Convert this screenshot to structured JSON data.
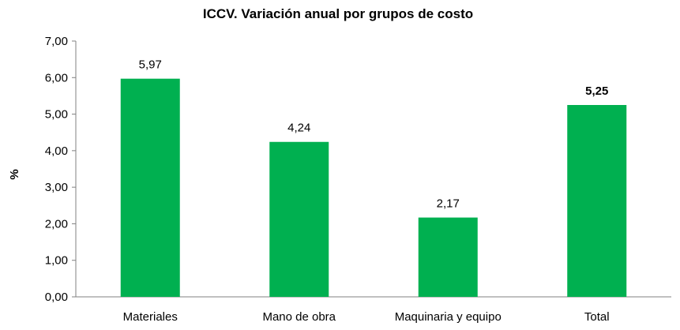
{
  "chart_data": {
    "type": "bar",
    "title": "ICCV. Variación anual por grupos de costo",
    "ylabel": "%",
    "xlabel": "",
    "categories": [
      "Materiales",
      "Mano de obra",
      "Maquinaria y equipo",
      "Total"
    ],
    "values": [
      5.97,
      4.24,
      2.17,
      5.25
    ],
    "value_labels": [
      "5,97",
      "4,24",
      "2,17",
      "5,25"
    ],
    "bold_labels": [
      false,
      false,
      false,
      true
    ],
    "ylim": [
      0,
      7
    ],
    "yticks": [
      0,
      1,
      2,
      3,
      4,
      5,
      6,
      7
    ],
    "ytick_labels": [
      "0,00",
      "1,00",
      "2,00",
      "3,00",
      "4,00",
      "5,00",
      "6,00",
      "7,00"
    ],
    "grid": false,
    "legend": "none",
    "bar_color": "#00b050"
  }
}
